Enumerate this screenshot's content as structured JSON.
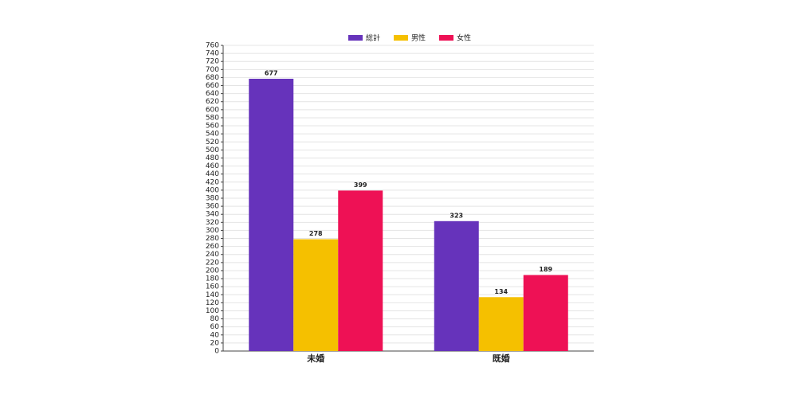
{
  "chart_data": {
    "type": "bar",
    "categories": [
      "未婚",
      "既婚"
    ],
    "series": [
      {
        "name": "総計",
        "color": "#6633bb",
        "values": [
          677,
          323
        ]
      },
      {
        "name": "男性",
        "color": "#f5c000",
        "values": [
          278,
          134
        ]
      },
      {
        "name": "女性",
        "color": "#ee1155",
        "values": [
          399,
          189
        ]
      }
    ],
    "ylim": [
      0,
      760
    ],
    "yticks": [
      0,
      20,
      40,
      60,
      80,
      100,
      120,
      140,
      160,
      180,
      200,
      220,
      240,
      260,
      280,
      300,
      320,
      340,
      360,
      380,
      400,
      420,
      440,
      460,
      480,
      500,
      520,
      540,
      560,
      580,
      600,
      620,
      640,
      660,
      680,
      700,
      720,
      740,
      760
    ],
    "grid": true,
    "legend": "top"
  }
}
